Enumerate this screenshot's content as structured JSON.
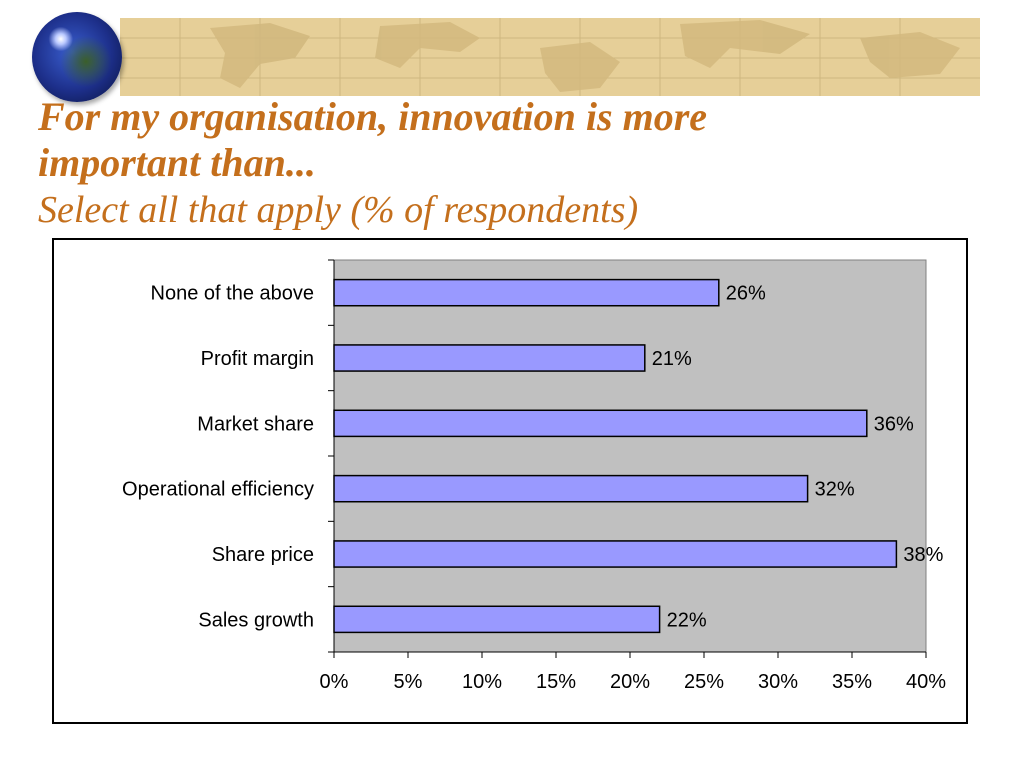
{
  "header": {
    "title_line1": "For my organisation, innovation is more",
    "title_line2": "important than...",
    "subtitle": "Select all that apply (% of respondents)"
  },
  "colors": {
    "title": "#c46f1c",
    "bar_fill": "#9999ff",
    "plot_background": "#c0c0c0",
    "banner": "#e6cf98"
  },
  "chart_data": {
    "type": "bar",
    "orientation": "horizontal",
    "categories": [
      "None of the above",
      "Profit margin",
      "Market share",
      "Operational efficiency",
      "Share price",
      "Sales growth"
    ],
    "values": [
      26,
      21,
      36,
      32,
      38,
      22
    ],
    "data_labels": [
      "26%",
      "21%",
      "36%",
      "32%",
      "38%",
      "22%"
    ],
    "xlim": [
      0,
      40
    ],
    "x_ticks": [
      0,
      5,
      10,
      15,
      20,
      25,
      30,
      35,
      40
    ],
    "x_tick_labels": [
      "0%",
      "5%",
      "10%",
      "15%",
      "20%",
      "25%",
      "30%",
      "35%",
      "40%"
    ],
    "xlabel": "",
    "ylabel": "",
    "grid": false,
    "legend": "none"
  }
}
